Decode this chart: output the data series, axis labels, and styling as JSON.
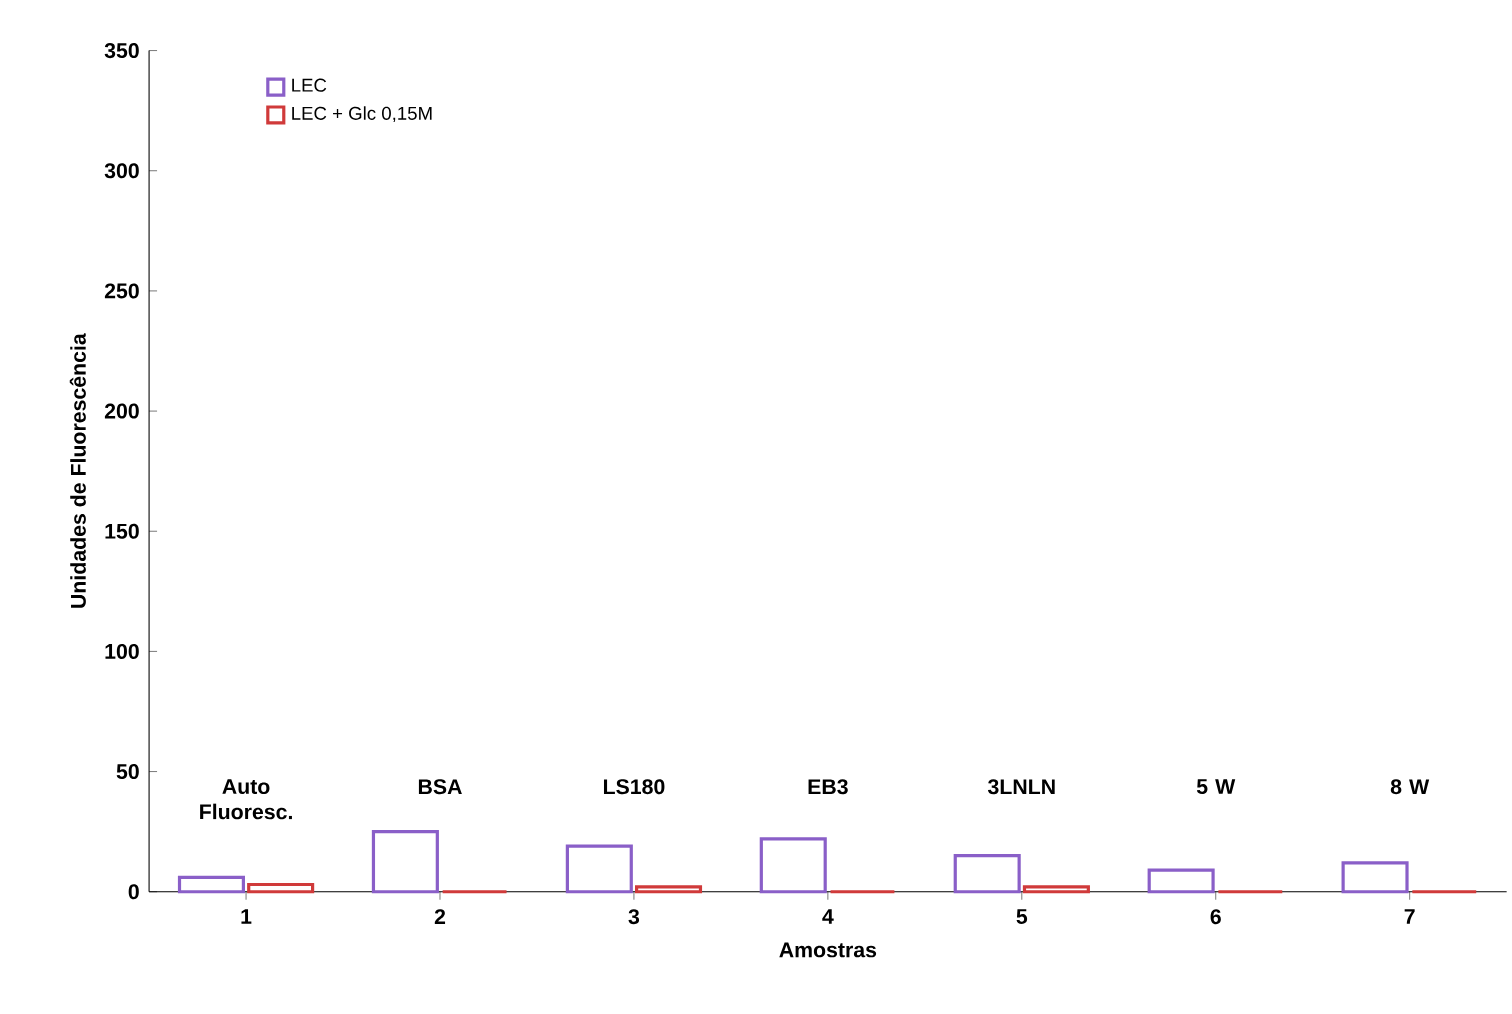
{
  "chart_data": {
    "type": "bar",
    "xlabel": "Amostras",
    "ylabel": "Unidades de Fluorescência",
    "categories": [
      "1",
      "2",
      "3",
      "4",
      "5",
      "6",
      "7"
    ],
    "series": [
      {
        "name": "LEC",
        "color": "#8a5fc8",
        "values": [
          6,
          25,
          19,
          22,
          15,
          9,
          12
        ]
      },
      {
        "name": "LEC + Glc 0,15M",
        "color": "#d03a3a",
        "values": [
          3,
          0,
          2,
          0,
          2,
          0,
          0
        ]
      }
    ],
    "ylim": [
      0,
      350
    ],
    "yticks": [
      0,
      50,
      100,
      150,
      200,
      250,
      300,
      350
    ],
    "grid": false,
    "legend": "top left",
    "annotations": [
      "Auto Fluoresc.",
      "BSA",
      "LS180",
      "EB3",
      "3LNLN",
      "5 W",
      "8 W"
    ]
  }
}
